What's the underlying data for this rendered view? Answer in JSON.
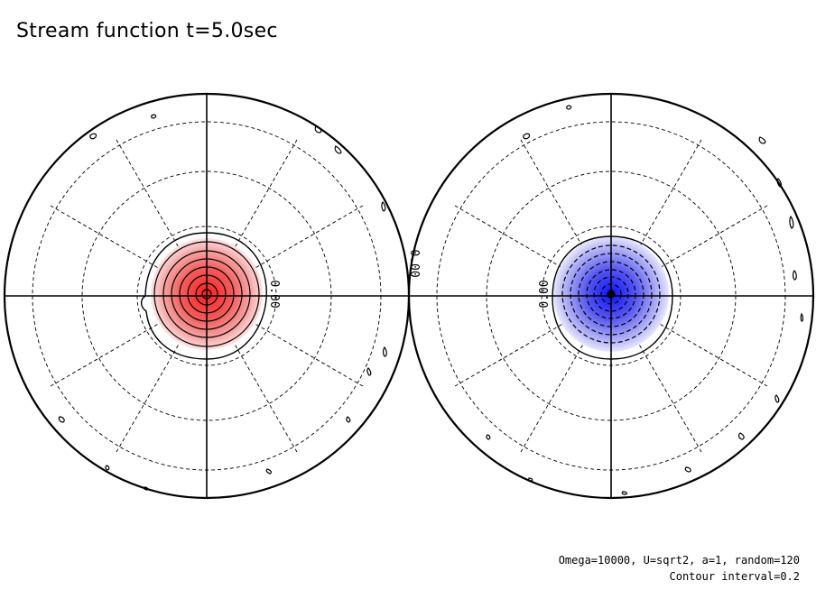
{
  "title": "Stream function t=5.0sec",
  "footer": {
    "params": "Omega=10000, U=sqrt2, a=1, random=120",
    "interval": "Contour interval=0.2"
  },
  "contour_labels": {
    "left_zero": "0.00",
    "middle_zero": "0.00",
    "right_zero": "0.00"
  },
  "colors": {
    "positive": "#ff2020",
    "negative": "#2020ff"
  }
}
